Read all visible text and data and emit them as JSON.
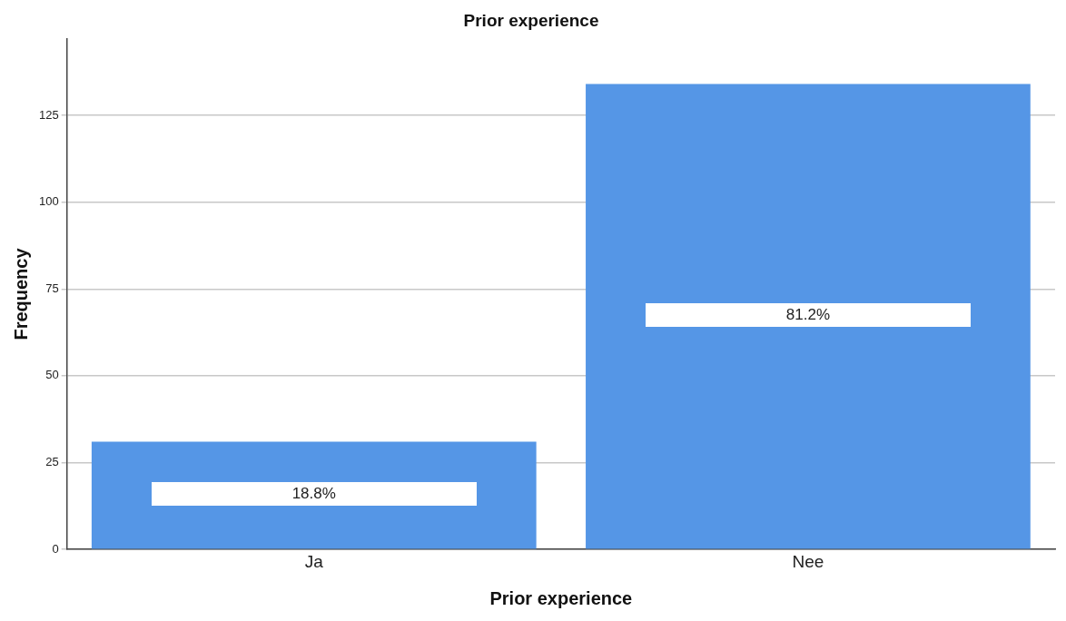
{
  "chart_data": {
    "type": "bar",
    "title": "Prior experience",
    "xlabel": "Prior experience",
    "ylabel": "Frequency",
    "categories": [
      "Ja",
      "Nee"
    ],
    "values": [
      31,
      134
    ],
    "color": "#5596e6",
    "annotations": [
      "18.8%",
      "81.2%"
    ],
    "ylim": [
      0,
      147
    ],
    "yticks": [
      0,
      25,
      50,
      75,
      100,
      125
    ],
    "grid": "y",
    "legend": false
  }
}
